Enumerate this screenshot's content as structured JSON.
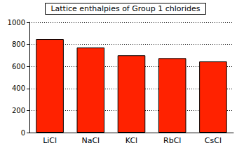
{
  "chart_data": {
    "type": "bar",
    "title": "Lattice enthalpies of Group 1 chlorides",
    "categories": [
      "LiCl",
      "NaCl",
      "KCl",
      "RbCl",
      "CsCl"
    ],
    "values": [
      848,
      771,
      701,
      675,
      645
    ],
    "color": "#ff2200",
    "ylim": [
      0,
      1000
    ],
    "yticks": [
      0,
      200,
      400,
      600,
      800,
      1000
    ],
    "grid": true
  }
}
